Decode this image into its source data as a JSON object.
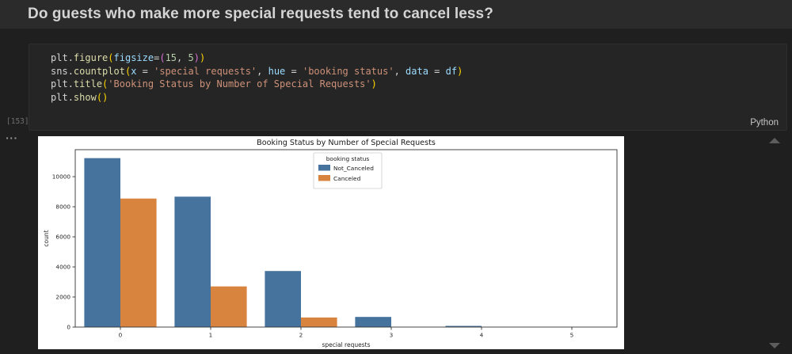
{
  "header": {
    "title": "Do guests who make more special requests tend to cancel less?"
  },
  "code_cell": {
    "execution_count": "[153]",
    "language": "Python",
    "lines": [
      [
        {
          "t": "plt",
          "c": "fg"
        },
        {
          "t": ".",
          "c": "fg"
        },
        {
          "t": "figure",
          "c": "fn"
        },
        {
          "t": "(",
          "c": "b1"
        },
        {
          "t": "figsize",
          "c": "param"
        },
        {
          "t": "=",
          "c": "fg"
        },
        {
          "t": "(",
          "c": "b2"
        },
        {
          "t": "15",
          "c": "num"
        },
        {
          "t": ", ",
          "c": "fg"
        },
        {
          "t": "5",
          "c": "num"
        },
        {
          "t": ")",
          "c": "b2"
        },
        {
          "t": ")",
          "c": "b1"
        }
      ],
      [
        {
          "t": "sns",
          "c": "fg"
        },
        {
          "t": ".",
          "c": "fg"
        },
        {
          "t": "countplot",
          "c": "fn"
        },
        {
          "t": "(",
          "c": "b1"
        },
        {
          "t": "x",
          "c": "param"
        },
        {
          "t": " = ",
          "c": "fg"
        },
        {
          "t": "'special requests'",
          "c": "str"
        },
        {
          "t": ", ",
          "c": "fg"
        },
        {
          "t": "hue",
          "c": "param"
        },
        {
          "t": " = ",
          "c": "fg"
        },
        {
          "t": "'booking status'",
          "c": "str"
        },
        {
          "t": ", ",
          "c": "fg"
        },
        {
          "t": "data",
          "c": "param"
        },
        {
          "t": " = ",
          "c": "fg"
        },
        {
          "t": "df",
          "c": "param"
        },
        {
          "t": ")",
          "c": "b1"
        }
      ],
      [
        {
          "t": "plt",
          "c": "fg"
        },
        {
          "t": ".",
          "c": "fg"
        },
        {
          "t": "title",
          "c": "fn"
        },
        {
          "t": "(",
          "c": "b1"
        },
        {
          "t": "'Booking Status by Number of Special Requests'",
          "c": "str"
        },
        {
          "t": ")",
          "c": "b1"
        }
      ],
      [
        {
          "t": "plt",
          "c": "fg"
        },
        {
          "t": ".",
          "c": "fg"
        },
        {
          "t": "show",
          "c": "fn"
        },
        {
          "t": "(",
          "c": "b1"
        },
        {
          "t": ")",
          "c": "b1"
        }
      ]
    ]
  },
  "output": {
    "more_icon": "···"
  },
  "colors": {
    "editor_fg": "#d4d4d4",
    "function_name": "#dcdcaa",
    "parameter": "#9cdcfe",
    "number": "#b5cea8",
    "string": "#ce9178",
    "bracket_level1": "#ffd700",
    "bracket_level2": "#da70d6",
    "series_blue": "#45739e",
    "series_orange": "#d8843f",
    "figure_bg": "#ffffff",
    "axis_text": "#262626"
  },
  "chart_data": {
    "type": "bar",
    "title": "Booking Status by Number of Special Requests",
    "xlabel": "special requests",
    "ylabel": "count",
    "categories": [
      "0",
      "1",
      "2",
      "3",
      "4",
      "5"
    ],
    "series": [
      {
        "name": "Not_Canceled",
        "color": "#45739e",
        "values": [
          11232,
          8670,
          3727,
          675,
          78,
          8
        ]
      },
      {
        "name": "Canceled",
        "color": "#d8843f",
        "values": [
          8545,
          2703,
          637,
          0,
          0,
          0
        ]
      }
    ],
    "legend_title": "booking status",
    "legend_position": "upper center",
    "ylim": [
      0,
      11794
    ],
    "yticks": [
      0,
      2000,
      4000,
      6000,
      8000,
      10000
    ],
    "grid": false
  }
}
